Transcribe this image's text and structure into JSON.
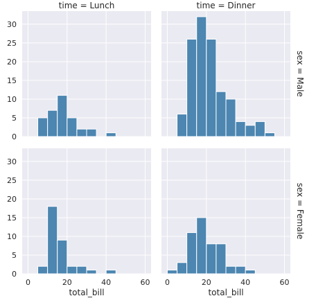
{
  "chart_data": {
    "type": "bar",
    "kind": "histogram facet grid",
    "x_column": "total_bill",
    "bin_width": 5,
    "xlim": [
      -3,
      63
    ],
    "ylim": [
      0,
      33.5
    ],
    "xticks": [
      0,
      20,
      40,
      60
    ],
    "yticks": [
      0,
      5,
      10,
      15,
      20,
      25,
      30
    ],
    "grid": true,
    "bar_color": "#4c86b1",
    "background_color": "#eaeaf2",
    "col_titles": [
      "time = Lunch",
      "time = Dinner"
    ],
    "row_titles": [
      "sex = Male",
      "sex = Female"
    ],
    "xlabel": "total_bill",
    "panels": [
      {
        "row": 0,
        "col": 0,
        "bin_starts": [
          5,
          10,
          15,
          20,
          25,
          30,
          35,
          40,
          45
        ],
        "counts": [
          5,
          7,
          11,
          5,
          2,
          2,
          0,
          1,
          0
        ]
      },
      {
        "row": 0,
        "col": 1,
        "bin_starts": [
          5,
          10,
          15,
          20,
          25,
          30,
          35,
          40,
          45,
          50
        ],
        "counts": [
          6,
          26,
          32,
          26,
          12,
          10,
          4,
          3,
          4,
          1
        ]
      },
      {
        "row": 1,
        "col": 0,
        "bin_starts": [
          5,
          10,
          15,
          20,
          25,
          30,
          35,
          40,
          45
        ],
        "counts": [
          2,
          18,
          9,
          2,
          2,
          1,
          0,
          1,
          0
        ]
      },
      {
        "row": 1,
        "col": 1,
        "bin_starts": [
          0,
          5,
          10,
          15,
          20,
          25,
          30,
          35,
          40,
          45
        ],
        "counts": [
          1,
          3,
          11,
          15,
          8,
          8,
          2,
          2,
          1,
          0
        ]
      }
    ]
  }
}
